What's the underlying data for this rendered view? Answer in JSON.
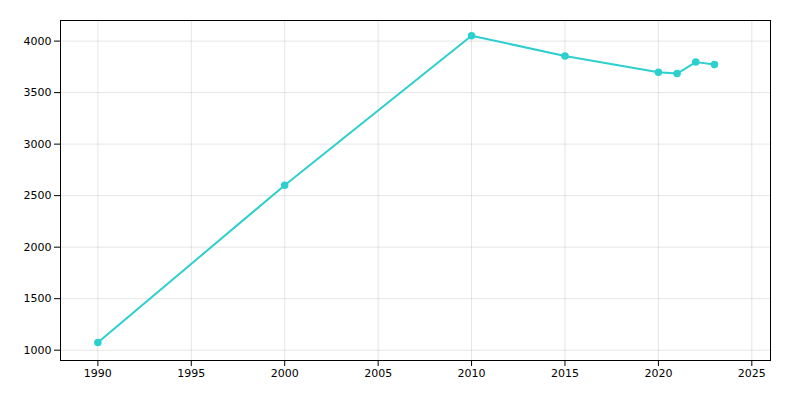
{
  "chart_data": {
    "type": "line",
    "x": [
      1990,
      2000,
      2010,
      2015,
      2020,
      2021,
      2022,
      2023
    ],
    "values": [
      1075,
      2601,
      4052,
      3856,
      3697,
      3685,
      3796,
      3774
    ],
    "color": "#2dcfcf",
    "marker": "circle",
    "xlim": [
      1988,
      2026
    ],
    "ylim": [
      900,
      4200
    ],
    "xticks": [
      1990,
      1995,
      2000,
      2005,
      2010,
      2015,
      2020,
      2025
    ],
    "yticks": [
      1000,
      1500,
      2000,
      2500,
      3000,
      3500,
      4000
    ],
    "grid": true
  }
}
